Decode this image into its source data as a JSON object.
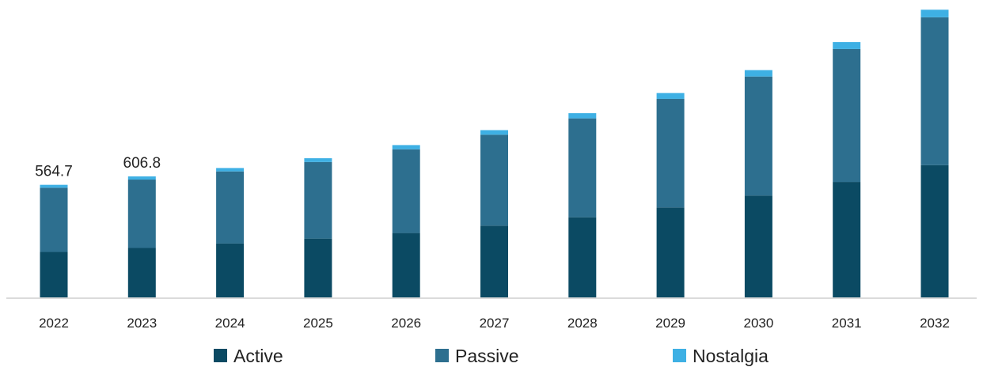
{
  "chart_data": {
    "type": "bar",
    "stacked": true,
    "categories": [
      "2022",
      "2023",
      "2024",
      "2025",
      "2026",
      "2027",
      "2028",
      "2029",
      "2030",
      "2031",
      "2032"
    ],
    "series": [
      {
        "name": "Active",
        "color": "#0b4a63",
        "values": [
          228,
          248,
          270,
          295,
          323,
          360,
          402,
          451,
          511,
          579,
          663
        ]
      },
      {
        "name": "Passive",
        "color": "#2d6f8f",
        "values": [
          322,
          343,
          362,
          384,
          420,
          456,
          496,
          545,
          597,
          667,
          742
        ]
      },
      {
        "name": "Nostalgia",
        "color": "#3eb0e4",
        "values": [
          14.7,
          15.8,
          17,
          19,
          21,
          23,
          26,
          29,
          32,
          35,
          38
        ]
      }
    ],
    "data_labels": [
      {
        "category": "2022",
        "text": "564.7"
      },
      {
        "category": "2023",
        "text": "606.8"
      }
    ],
    "title": "",
    "xlabel": "",
    "ylabel": "",
    "ylim": [
      0,
      1460
    ],
    "grid": false,
    "legend_position": "bottom"
  }
}
